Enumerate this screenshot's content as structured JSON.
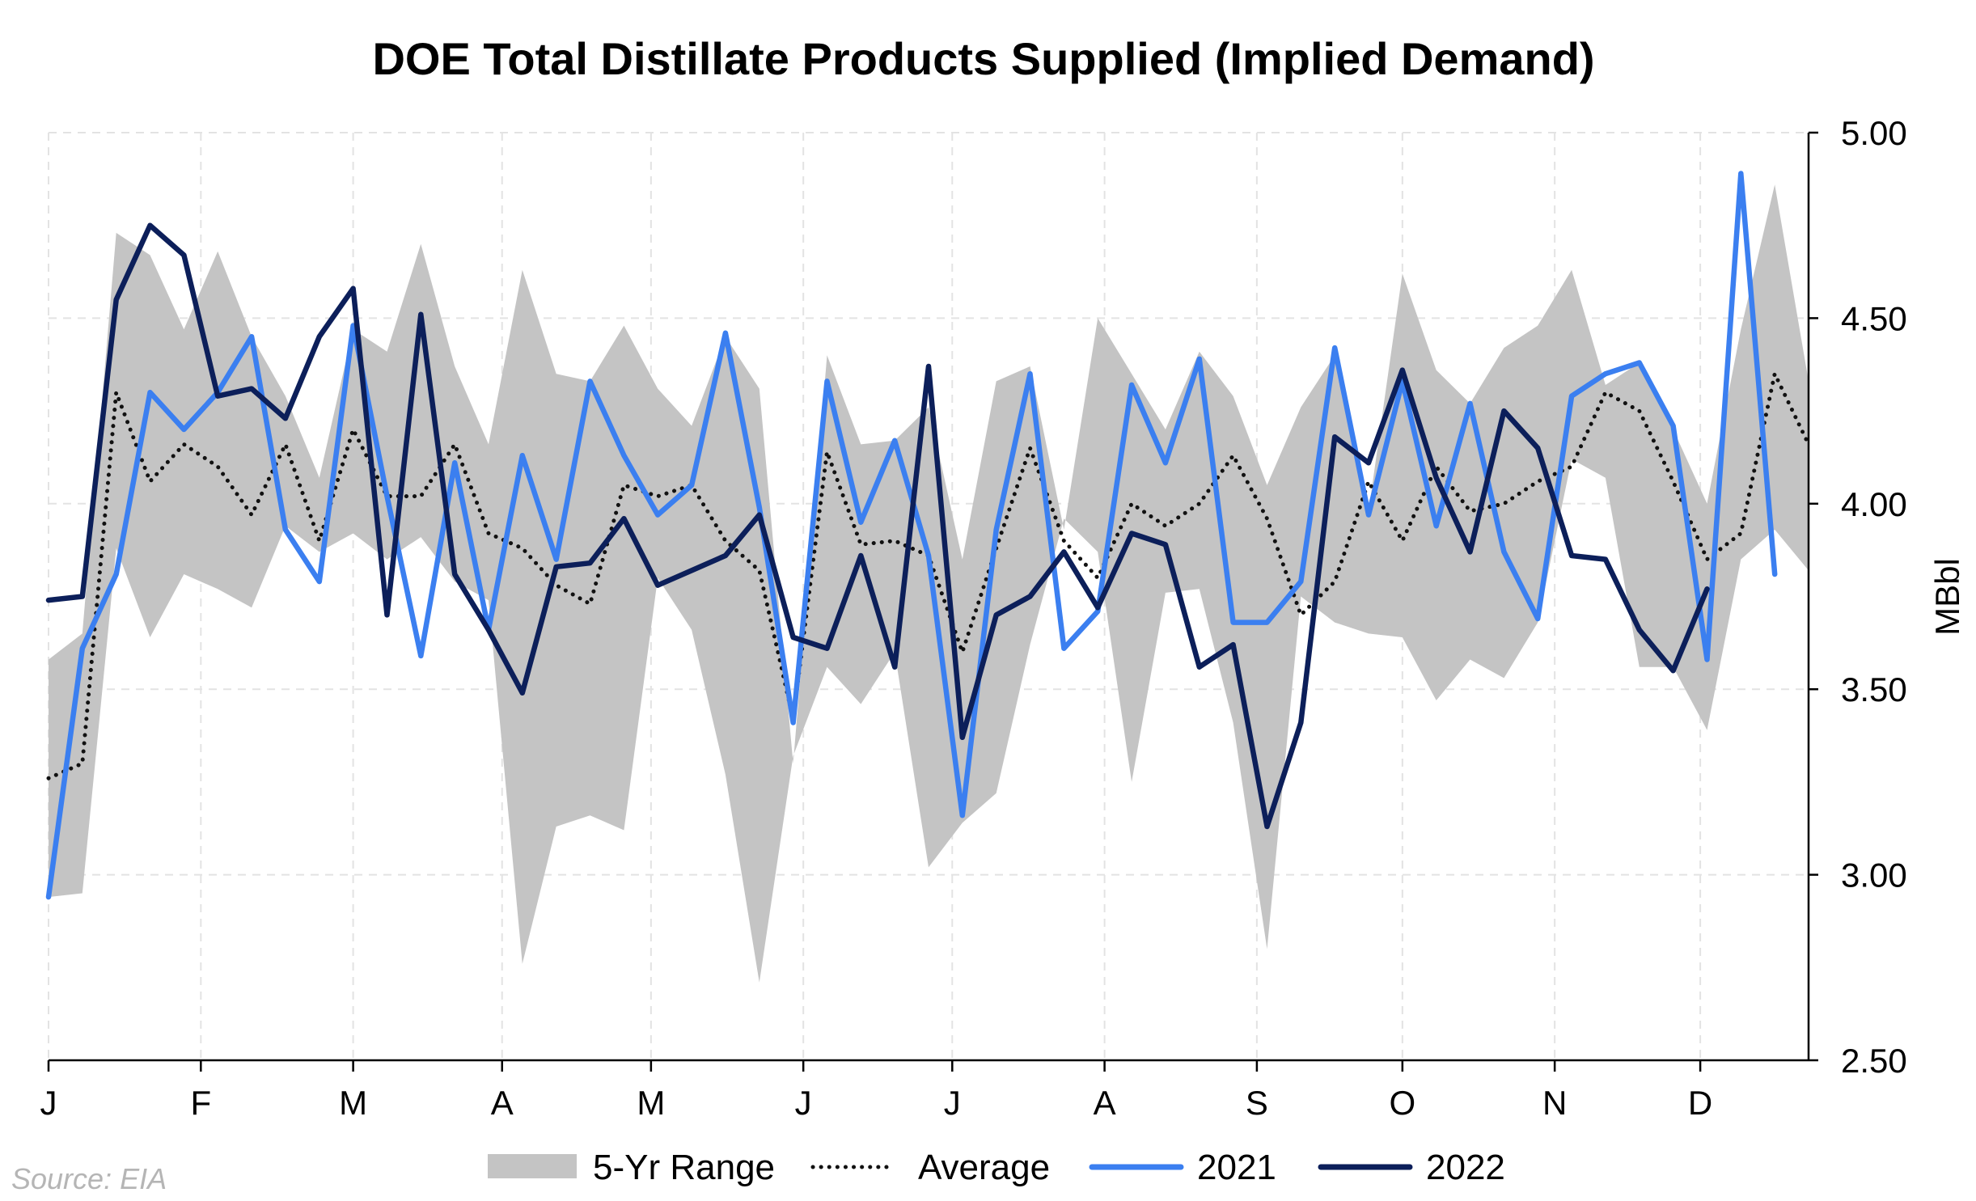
{
  "source": "Source: EIA",
  "colors": {
    "range": "#c4c4c4",
    "average": "#111111",
    "y2021": "#3b7ff0",
    "y2022": "#0c1f5a"
  },
  "chart_data": {
    "type": "line",
    "title": "DOE Total Distillate Products Supplied (Implied Demand)",
    "ylabel": "MBbl",
    "ylim": [
      2.5,
      5.0
    ],
    "y_ticks": [
      "2.50",
      "3.00",
      "3.50",
      "4.00",
      "4.50",
      "5.00"
    ],
    "y_tick_values": [
      2.5,
      3.0,
      3.5,
      4.0,
      4.5,
      5.0
    ],
    "xlim": [
      1,
      53
    ],
    "x_tick_labels": [
      "J",
      "F",
      "M",
      "A",
      "M",
      "J",
      "J",
      "A",
      "S",
      "O",
      "N",
      "D"
    ],
    "x_tick_weeks": [
      1,
      5.5,
      10,
      14.4,
      18.8,
      23.3,
      27.7,
      32.2,
      36.7,
      41,
      45.5,
      49.8
    ],
    "y_axis_position": "right",
    "grid": true,
    "legend_position": "bottom",
    "legend": [
      "5-Yr Range",
      "Average",
      "2021",
      "2022"
    ],
    "weeks": [
      1,
      2,
      3,
      4,
      5,
      6,
      7,
      8,
      9,
      10,
      11,
      12,
      13,
      14,
      15,
      16,
      17,
      18,
      19,
      20,
      21,
      22,
      23,
      24,
      25,
      26,
      27,
      28,
      29,
      30,
      31,
      32,
      33,
      34,
      35,
      36,
      37,
      38,
      39,
      40,
      41,
      42,
      43,
      44,
      45,
      46,
      47,
      48,
      49,
      50,
      51,
      52,
      53
    ],
    "range_high": [
      3.58,
      3.65,
      4.73,
      4.67,
      4.47,
      4.68,
      4.45,
      4.29,
      4.07,
      4.47,
      4.41,
      4.7,
      4.37,
      4.16,
      4.63,
      4.35,
      4.33,
      4.48,
      4.31,
      4.21,
      4.45,
      4.31,
      3.3,
      4.4,
      4.16,
      4.17,
      4.26,
      3.85,
      4.33,
      4.37,
      3.93,
      4.5,
      4.35,
      4.2,
      4.41,
      4.29,
      4.05,
      4.26,
      4.4,
      3.98,
      4.62,
      4.36,
      4.27,
      4.42,
      4.48,
      4.63,
      4.32,
      4.38,
      4.2,
      4.0,
      4.47,
      4.86,
      4.33
    ],
    "range_low": [
      2.94,
      2.95,
      3.88,
      3.64,
      3.81,
      3.77,
      3.72,
      3.94,
      3.87,
      3.92,
      3.85,
      3.91,
      3.79,
      3.74,
      2.76,
      3.13,
      3.16,
      3.12,
      3.8,
      3.66,
      3.27,
      2.71,
      3.32,
      3.56,
      3.46,
      3.6,
      3.02,
      3.14,
      3.22,
      3.62,
      3.96,
      3.87,
      3.25,
      3.76,
      3.77,
      3.41,
      2.8,
      3.75,
      3.68,
      3.65,
      3.64,
      3.47,
      3.58,
      3.53,
      3.68,
      4.12,
      4.07,
      3.56,
      3.56,
      3.39,
      3.85,
      3.93,
      3.82
    ],
    "series": [
      {
        "name": "Average",
        "values": [
          3.26,
          3.3,
          4.3,
          4.06,
          4.16,
          4.1,
          3.97,
          4.16,
          3.9,
          4.2,
          4.02,
          4.02,
          4.16,
          3.92,
          3.88,
          3.78,
          3.73,
          4.05,
          4.02,
          4.05,
          3.9,
          3.82,
          3.42,
          4.14,
          3.89,
          3.9,
          3.86,
          3.6,
          3.88,
          4.15,
          3.9,
          3.8,
          4.0,
          3.94,
          4.0,
          4.13,
          3.96,
          3.7,
          3.79,
          4.06,
          3.9,
          4.1,
          3.98,
          4.0,
          4.06,
          4.1,
          4.3,
          4.25,
          4.06,
          3.85,
          3.92,
          4.35,
          4.16
        ]
      },
      {
        "name": "2021",
        "values": [
          2.94,
          3.61,
          3.81,
          4.3,
          4.2,
          4.3,
          4.45,
          3.93,
          3.79,
          4.48,
          4.02,
          3.59,
          4.11,
          3.66,
          4.13,
          3.85,
          4.33,
          4.13,
          3.97,
          4.05,
          4.46,
          3.99,
          3.41,
          4.33,
          3.95,
          4.17,
          3.86,
          3.16,
          3.93,
          4.35,
          3.61,
          3.71,
          4.32,
          4.11,
          4.39,
          3.68,
          3.68,
          3.79,
          4.42,
          3.97,
          4.33,
          3.94,
          4.27,
          3.87,
          3.69,
          4.29,
          4.35,
          4.38,
          4.21,
          3.58,
          4.89,
          3.81
        ]
      },
      {
        "name": "2022",
        "values": [
          3.74,
          3.75,
          4.55,
          4.75,
          4.67,
          4.29,
          4.31,
          4.23,
          4.45,
          4.58,
          3.7,
          4.51,
          3.81,
          3.66,
          3.49,
          3.83,
          3.84,
          3.96,
          3.78,
          3.82,
          3.86,
          3.97,
          3.64,
          3.61,
          3.86,
          3.56,
          4.37,
          3.37,
          3.7,
          3.75,
          3.87,
          3.72,
          3.92,
          3.89,
          3.56,
          3.62,
          3.13,
          3.41,
          4.18,
          4.11,
          4.36,
          4.07,
          3.87,
          4.25,
          4.15,
          3.86,
          3.85,
          3.66,
          3.55,
          3.77
        ]
      }
    ]
  }
}
